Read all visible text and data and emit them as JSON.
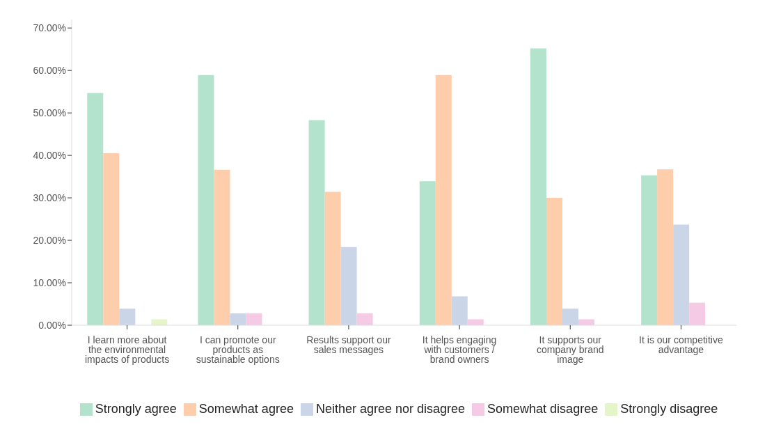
{
  "chart_data": {
    "type": "bar",
    "categories": [
      "I learn more about the environmental impacts of products",
      "I can promote our products as sustainable options",
      "Results support our sales messages",
      "It helps engaging with customers / brand owners",
      "It supports our company brand image",
      "It is our competitive advantage"
    ],
    "series": [
      {
        "name": "Strongly agree",
        "color": "#b3e2cd",
        "values": [
          54.7,
          58.9,
          48.3,
          33.9,
          65.2,
          35.3
        ]
      },
      {
        "name": "Somewhat agree",
        "color": "#fdcdac",
        "values": [
          40.5,
          36.6,
          31.4,
          58.9,
          30.0,
          36.7
        ]
      },
      {
        "name": "Neither agree nor disagree",
        "color": "#cbd5e8",
        "values": [
          3.9,
          2.8,
          18.4,
          6.8,
          3.9,
          23.7
        ]
      },
      {
        "name": "Somewhat disagree",
        "color": "#f4cae4",
        "values": [
          0,
          2.8,
          2.8,
          1.4,
          1.4,
          5.3
        ]
      },
      {
        "name": "Strongly disagree",
        "color": "#e6f5c9",
        "values": [
          1.4,
          0,
          0,
          0,
          0,
          0
        ]
      }
    ],
    "ylim": [
      0,
      72
    ],
    "yticks": [
      {
        "value": 0,
        "label": "0.00%"
      },
      {
        "value": 10,
        "label": "10.00%"
      },
      {
        "value": 20,
        "label": "20.00%"
      },
      {
        "value": 30,
        "label": "30.00%"
      },
      {
        "value": 40,
        "label": "40.00%"
      },
      {
        "value": 50,
        "label": "50.00%"
      },
      {
        "value": 60,
        "label": "60.00%"
      },
      {
        "value": 70,
        "label": "70.00%"
      }
    ],
    "grid": false,
    "legend": "bottom"
  }
}
